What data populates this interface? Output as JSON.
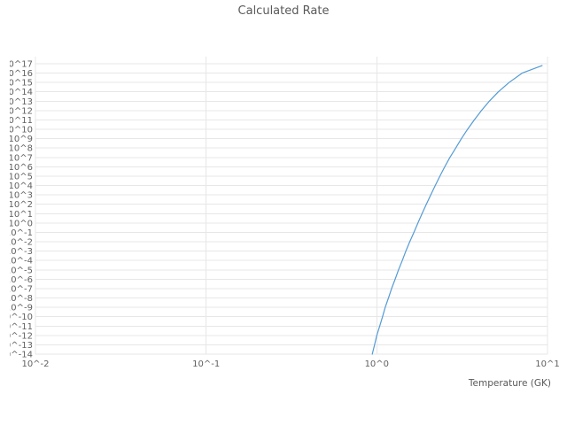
{
  "chart_data": {
    "type": "line",
    "title": "Calculated Rate",
    "xlabel": "Temperature (GK)",
    "ylabel": "",
    "x_scale": "log",
    "y_scale": "log",
    "x_range_exp": [
      -2,
      1
    ],
    "y_range_exp": [
      -14,
      17
    ],
    "grid": true,
    "legend": "none",
    "colors": {
      "line": "#539BD5",
      "grid": "#e7e7e7",
      "text": "#595959"
    },
    "x_ticks": {
      "exps": [
        -2,
        -1,
        0,
        1
      ],
      "labels": [
        "10^-2",
        "10^-1",
        "10^0",
        "10^1"
      ]
    },
    "y_ticks": {
      "exps": [
        17,
        16,
        15,
        14,
        13,
        12,
        11,
        10,
        9,
        8,
        7,
        6,
        5,
        4,
        3,
        2,
        1,
        0,
        -1,
        -2,
        -3,
        -4,
        -5,
        -6,
        -7,
        -8,
        -9,
        -10,
        -11,
        -12,
        -13,
        -14
      ],
      "labels": [
        "10^17",
        "10^16",
        "10^15",
        "10^14",
        "10^13",
        "10^12",
        "10^11",
        "10^10",
        "10^9",
        "10^8",
        "10^7",
        "10^6",
        "10^5",
        "10^4",
        "10^3",
        "10^2",
        "10^1",
        "10^0",
        "10^-1",
        "10^-2",
        "10^-3",
        "10^-4",
        "10^-5",
        "10^-6",
        "10^-7",
        "10^-8",
        "10^-9",
        "10^-10",
        "10^-11",
        "10^-12",
        "10^-13",
        "10^-14"
      ]
    },
    "series": [
      {
        "name": "calculated-rate",
        "points_T_log10rate": [
          [
            0.94,
            -14
          ],
          [
            0.97,
            -13
          ],
          [
            1.0,
            -12
          ],
          [
            1.04,
            -11
          ],
          [
            1.08,
            -10
          ],
          [
            1.12,
            -9
          ],
          [
            1.17,
            -8
          ],
          [
            1.22,
            -7
          ],
          [
            1.28,
            -6
          ],
          [
            1.34,
            -5
          ],
          [
            1.41,
            -4
          ],
          [
            1.48,
            -3
          ],
          [
            1.56,
            -2
          ],
          [
            1.65,
            -1
          ],
          [
            1.74,
            0
          ],
          [
            1.84,
            1
          ],
          [
            1.95,
            2
          ],
          [
            2.07,
            3
          ],
          [
            2.2,
            4
          ],
          [
            2.34,
            5
          ],
          [
            2.5,
            6
          ],
          [
            2.68,
            7
          ],
          [
            2.9,
            8
          ],
          [
            3.13,
            9
          ],
          [
            3.4,
            10
          ],
          [
            3.72,
            11
          ],
          [
            4.1,
            12
          ],
          [
            4.56,
            13
          ],
          [
            5.15,
            14
          ],
          [
            5.95,
            15
          ],
          [
            7.1,
            16
          ],
          [
            9.3,
            16.8
          ]
        ]
      }
    ]
  }
}
